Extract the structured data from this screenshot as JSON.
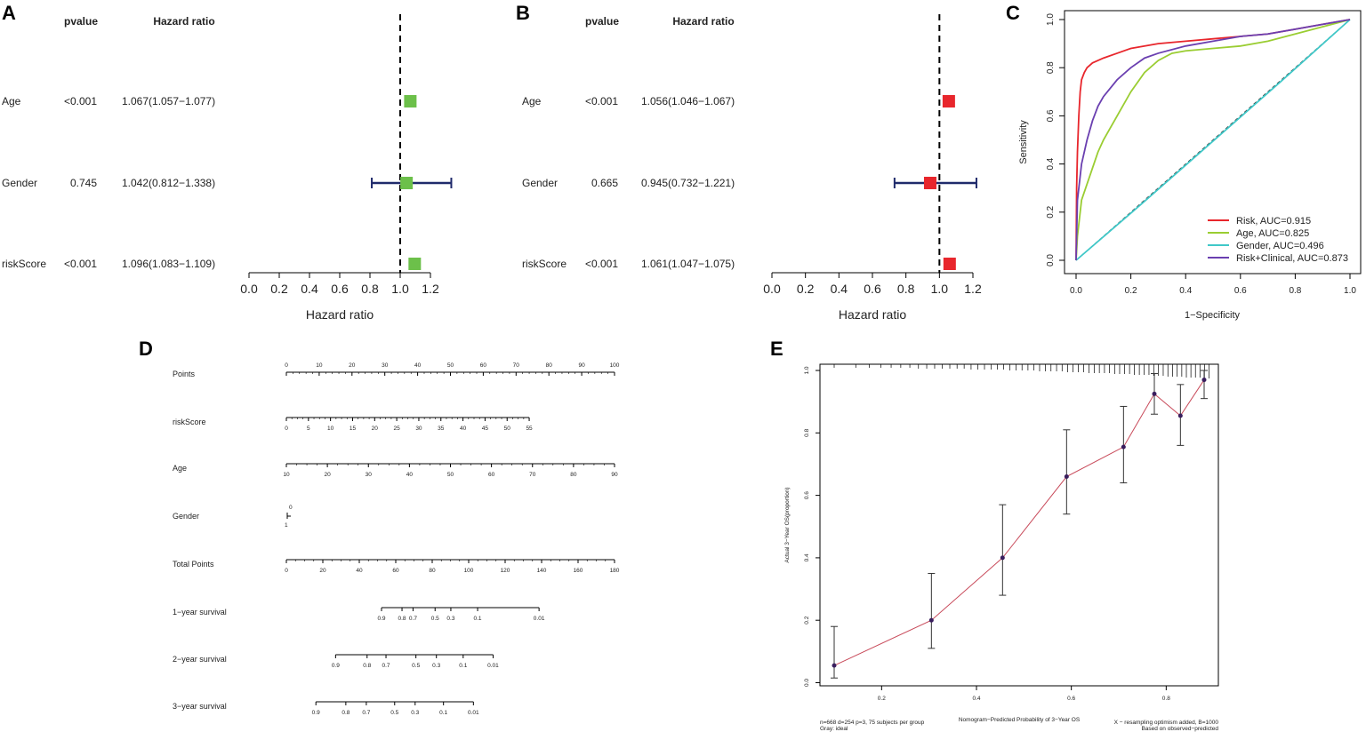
{
  "panels": {
    "A": "A",
    "B": "B",
    "C": "C",
    "D": "D",
    "E": "E"
  },
  "chart_data": [
    {
      "panel": "A",
      "type": "forest",
      "header_p": "pvalue",
      "header_hr": "Hazard ratio",
      "xlabel": "Hazard ratio",
      "xlim": [
        0,
        1.2
      ],
      "xticks": [
        "0.0",
        "0.2",
        "0.4",
        "0.6",
        "0.8",
        "1.0",
        "1.2"
      ],
      "reference": 1.0,
      "color": "#6cc04a",
      "rows": [
        {
          "label": "Age",
          "p": "<0.001",
          "hr_text": "1.067(1.057−1.077)",
          "hr": 1.067,
          "lo": 1.057,
          "hi": 1.077
        },
        {
          "label": "Gender",
          "p": "0.745",
          "hr_text": "1.042(0.812−1.338)",
          "hr": 1.042,
          "lo": 0.812,
          "hi": 1.338
        },
        {
          "label": "riskScore",
          "p": "<0.001",
          "hr_text": "1.096(1.083−1.109)",
          "hr": 1.096,
          "lo": 1.083,
          "hi": 1.109
        }
      ]
    },
    {
      "panel": "B",
      "type": "forest",
      "header_p": "pvalue",
      "header_hr": "Hazard ratio",
      "xlabel": "Hazard ratio",
      "xlim": [
        0,
        1.2
      ],
      "xticks": [
        "0.0",
        "0.2",
        "0.4",
        "0.6",
        "0.8",
        "1.0",
        "1.2"
      ],
      "reference": 1.0,
      "color": "#e8262c",
      "rows": [
        {
          "label": "Age",
          "p": "<0.001",
          "hr_text": "1.056(1.046−1.067)",
          "hr": 1.056,
          "lo": 1.046,
          "hi": 1.067
        },
        {
          "label": "Gender",
          "p": "0.665",
          "hr_text": "0.945(0.732−1.221)",
          "hr": 0.945,
          "lo": 0.732,
          "hi": 1.221
        },
        {
          "label": "riskScore",
          "p": "<0.001",
          "hr_text": "1.061(1.047−1.075)",
          "hr": 1.061,
          "lo": 1.047,
          "hi": 1.075
        }
      ]
    },
    {
      "panel": "C",
      "type": "line",
      "xlabel": "1−Specificity",
      "ylabel": "Sensitivity",
      "xlim": [
        0,
        1
      ],
      "ylim": [
        0,
        1
      ],
      "xticks": [
        "0.0",
        "0.2",
        "0.4",
        "0.6",
        "0.8",
        "1.0"
      ],
      "yticks": [
        "0.0",
        "0.2",
        "0.4",
        "0.6",
        "0.8",
        "1.0"
      ],
      "series": [
        {
          "name": "Risk, AUC=0.915",
          "color": "#e8262c",
          "x": [
            0,
            0.002,
            0.005,
            0.01,
            0.015,
            0.02,
            0.03,
            0.04,
            0.06,
            0.08,
            0.1,
            0.15,
            0.2,
            0.3,
            0.4,
            0.5,
            0.6,
            0.7,
            0.8,
            0.9,
            1.0
          ],
          "y": [
            0,
            0.3,
            0.45,
            0.6,
            0.7,
            0.75,
            0.78,
            0.8,
            0.82,
            0.83,
            0.84,
            0.86,
            0.88,
            0.9,
            0.91,
            0.92,
            0.93,
            0.94,
            0.96,
            0.98,
            1.0
          ]
        },
        {
          "name": "Age, AUC=0.825",
          "color": "#9acd32",
          "x": [
            0,
            0.005,
            0.02,
            0.05,
            0.08,
            0.1,
            0.15,
            0.2,
            0.25,
            0.3,
            0.35,
            0.4,
            0.5,
            0.6,
            0.7,
            0.8,
            0.9,
            1.0
          ],
          "y": [
            0,
            0.1,
            0.25,
            0.35,
            0.45,
            0.5,
            0.6,
            0.7,
            0.78,
            0.83,
            0.86,
            0.87,
            0.88,
            0.89,
            0.91,
            0.94,
            0.97,
            1.0
          ]
        },
        {
          "name": "Gender, AUC=0.496",
          "color": "#40c8c8",
          "x": [
            0,
            0.25,
            0.5,
            0.75,
            1.0
          ],
          "y": [
            0,
            0.245,
            0.495,
            0.745,
            1.0
          ]
        },
        {
          "name": "Risk+Clinical, AUC=0.873",
          "color": "#6a3fb0",
          "x": [
            0,
            0.005,
            0.02,
            0.04,
            0.06,
            0.08,
            0.1,
            0.15,
            0.2,
            0.25,
            0.3,
            0.4,
            0.5,
            0.6,
            0.7,
            0.8,
            0.9,
            1.0
          ],
          "y": [
            0,
            0.25,
            0.4,
            0.5,
            0.58,
            0.64,
            0.68,
            0.75,
            0.8,
            0.84,
            0.86,
            0.89,
            0.91,
            0.93,
            0.94,
            0.96,
            0.98,
            1.0
          ]
        }
      ]
    },
    {
      "panel": "D",
      "type": "nomogram",
      "rows": [
        {
          "label": "Points",
          "ticks": [
            "0",
            "10",
            "20",
            "30",
            "40",
            "50",
            "60",
            "70",
            "80",
            "90",
            "100"
          ],
          "start": 0,
          "end": 1,
          "labels_above": true
        },
        {
          "label": "riskScore",
          "ticks": [
            "0",
            "5",
            "10",
            "15",
            "20",
            "25",
            "30",
            "35",
            "40",
            "45",
            "50",
            "55"
          ],
          "start": 0,
          "end": 0.74,
          "labels_above": false
        },
        {
          "label": "Age",
          "ticks": [
            "10",
            "20",
            "30",
            "40",
            "50",
            "60",
            "70",
            "80",
            "90"
          ],
          "start": 0,
          "end": 1,
          "labels_above": false
        },
        {
          "label": "Gender",
          "ticks": [
            "0",
            "1"
          ],
          "start": 0,
          "end": 0.01,
          "labels_above": false
        },
        {
          "label": "Total Points",
          "ticks": [
            "0",
            "20",
            "40",
            "60",
            "80",
            "100",
            "120",
            "140",
            "160",
            "180"
          ],
          "start": 0,
          "end": 1,
          "labels_above": false
        },
        {
          "label": "1−year survival",
          "ticks": [
            "0.9",
            "0.8",
            "0.7",
            "0.5",
            "0.3",
            "0.1",
            "0.01"
          ],
          "tick_pos": [
            0,
            0.13,
            0.2,
            0.34,
            0.44,
            0.61,
            1.0
          ],
          "start": 0.29,
          "end": 0.77,
          "labels_above": false
        },
        {
          "label": "2−year survival",
          "ticks": [
            "0.9",
            "0.8",
            "0.7",
            "0.5",
            "0.3",
            "0.1",
            "0.01"
          ],
          "tick_pos": [
            0,
            0.2,
            0.32,
            0.51,
            0.64,
            0.81,
            1.0
          ],
          "start": 0.15,
          "end": 0.63,
          "labels_above": false
        },
        {
          "label": "3−year survival",
          "ticks": [
            "0.9",
            "0.8",
            "0.7",
            "0.5",
            "0.3",
            "0.1",
            "0.01"
          ],
          "tick_pos": [
            0,
            0.19,
            0.32,
            0.5,
            0.63,
            0.81,
            1.0
          ],
          "start": 0.09,
          "end": 0.57,
          "labels_above": false
        }
      ]
    },
    {
      "panel": "E",
      "type": "calibration",
      "xlabel": "Nomogram−Predicted Probability of 3−Year OS",
      "ylabel": "Actual 3−Year OS(proportion)",
      "xlim": [
        0.07,
        0.91
      ],
      "ylim": [
        -0.01,
        1.02
      ],
      "xticks": [
        "0.2",
        "0.4",
        "0.6",
        "0.8"
      ],
      "yticks": [
        "0.0",
        "0.2",
        "0.4",
        "0.6",
        "0.8",
        "1.0"
      ],
      "footnote_left_1": "n=668 d=254 p=3, 75 subjects per group",
      "footnote_left_2": "Gray: ideal",
      "footnote_right_1": "X − resampling optimism added, B=1000",
      "footnote_right_2": "Based on observed−predicted",
      "points": [
        {
          "x": 0.1,
          "y": 0.055,
          "lo": 0.015,
          "hi": 0.18
        },
        {
          "x": 0.305,
          "y": 0.2,
          "lo": 0.11,
          "hi": 0.35
        },
        {
          "x": 0.455,
          "y": 0.4,
          "lo": 0.28,
          "hi": 0.57
        },
        {
          "x": 0.59,
          "y": 0.66,
          "lo": 0.54,
          "hi": 0.81
        },
        {
          "x": 0.71,
          "y": 0.755,
          "lo": 0.64,
          "hi": 0.885
        },
        {
          "x": 0.775,
          "y": 0.925,
          "lo": 0.86,
          "hi": 0.99
        },
        {
          "x": 0.83,
          "y": 0.855,
          "lo": 0.76,
          "hi": 0.955
        },
        {
          "x": 0.88,
          "y": 0.97,
          "lo": 0.91,
          "hi": 1.0
        }
      ]
    }
  ]
}
